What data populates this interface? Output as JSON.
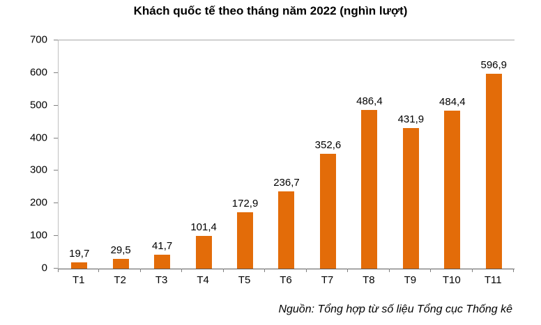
{
  "chart_data": {
    "type": "bar",
    "title": "Khách quốc tế theo tháng năm 2022 (nghìn lượt)",
    "source_note": "Nguồn: Tổng hợp từ số liệu Tổng cục Thống kê",
    "categories": [
      "T1",
      "T2",
      "T3",
      "T4",
      "T5",
      "T6",
      "T7",
      "T8",
      "T9",
      "T10",
      "T11"
    ],
    "values": [
      19.7,
      29.5,
      41.7,
      101.4,
      172.9,
      236.7,
      352.6,
      486.4,
      431.9,
      484.4,
      596.9
    ],
    "value_labels": [
      "19,7",
      "29,5",
      "41,7",
      "101,4",
      "172,9",
      "236,7",
      "352,6",
      "486,4",
      "431,9",
      "484,4",
      "596,9"
    ],
    "xlabel": "",
    "ylabel": "",
    "ylim": [
      0,
      700
    ],
    "yticks": [
      0,
      100,
      200,
      300,
      400,
      500,
      600,
      700
    ],
    "bar_color": "#E36C09",
    "grid": false,
    "legend": false,
    "legend_position": "none"
  }
}
